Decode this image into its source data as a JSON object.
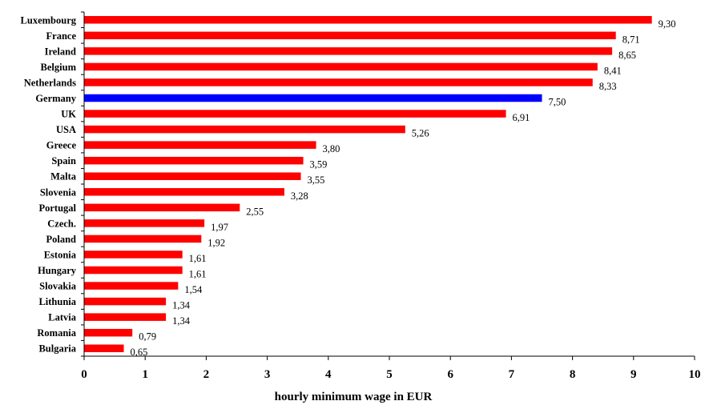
{
  "chart_data": {
    "type": "bar",
    "orientation": "horizontal",
    "categories": [
      "Luxembourg",
      "France",
      "Ireland",
      "Belgium",
      "Netherlands",
      "Germany",
      "UK",
      "USA",
      "Greece",
      "Spain",
      "Malta",
      "Slovenia",
      "Portugal",
      "Czech.",
      "Poland",
      "Estonia",
      "Hungary",
      "Slovakia",
      "Lithunia",
      "Latvia",
      "Romania",
      "Bulgaria"
    ],
    "values": [
      9.3,
      8.71,
      8.65,
      8.41,
      8.33,
      7.5,
      6.91,
      5.26,
      3.8,
      3.59,
      3.55,
      3.28,
      2.55,
      1.97,
      1.92,
      1.61,
      1.61,
      1.54,
      1.34,
      1.34,
      0.79,
      0.65
    ],
    "value_labels": [
      "9,30",
      "8,71",
      "8,65",
      "8,41",
      "8,33",
      "7,50",
      "6,91",
      "5,26",
      "3,80",
      "3,59",
      "3,55",
      "3,28",
      "2,55",
      "1,97",
      "1,92",
      "1,61",
      "1,61",
      "1,54",
      "1,34",
      "1,34",
      "0,79",
      "0,65"
    ],
    "highlight_category": "Germany",
    "colors": {
      "default": "#ff0000",
      "highlight": "#0000ff"
    },
    "xlabel": "hourly minimum wage in EUR",
    "xlim": [
      0,
      10
    ],
    "xticks": [
      "0",
      "1",
      "2",
      "3",
      "4",
      "5",
      "6",
      "7",
      "8",
      "9",
      "10"
    ],
    "grid": false,
    "legend": "none"
  }
}
